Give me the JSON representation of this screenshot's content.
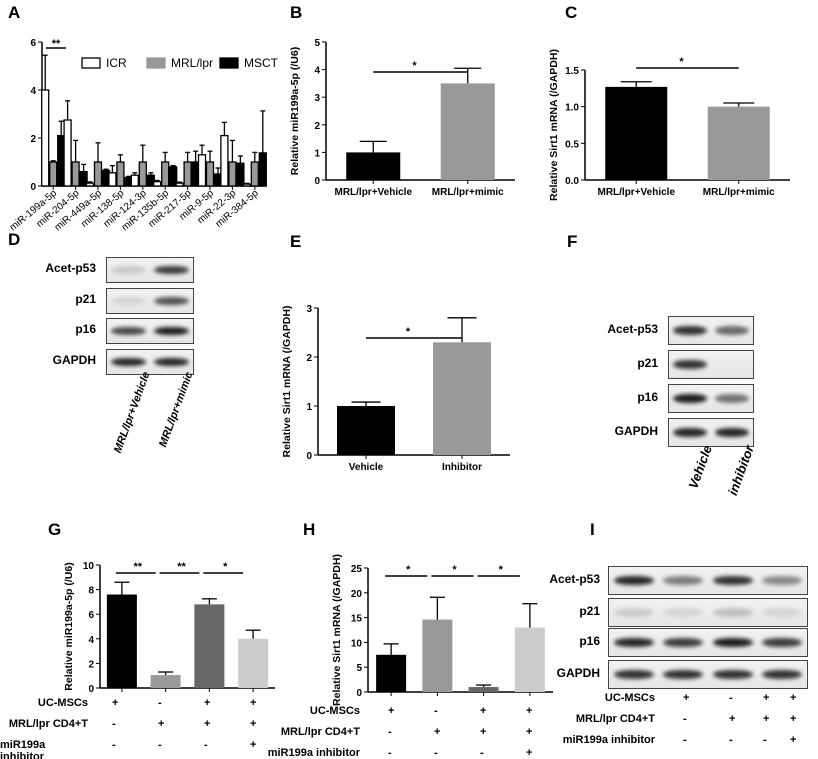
{
  "panels": {
    "A": "A",
    "B": "B",
    "C": "C",
    "D": "D",
    "E": "E",
    "F": "F",
    "G": "G",
    "H": "H",
    "I": "I"
  },
  "chart_data": [
    {
      "id": "A",
      "type": "bar",
      "title": "",
      "ylabel": "",
      "ylim": [
        0,
        6
      ],
      "yticks": [
        0,
        2,
        4,
        6
      ],
      "categories": [
        "miR-199a-5p",
        "miR-204-5p",
        "miR-449a-5p",
        "miR-138-5p",
        "miR-124-3p",
        "miR-135b-5p",
        "miR-217-5p",
        "miR-9-5p",
        "miR-22-3p",
        "miR-384-5p"
      ],
      "legend": {
        "placement": "top-right",
        "entries": [
          "ICR",
          "MRL/lpr",
          "MSCT"
        ]
      },
      "series": [
        {
          "name": "ICR",
          "color": "#ffffff",
          "values": [
            4.0,
            2.75,
            0.12,
            0.55,
            0.45,
            0.18,
            0.12,
            1.3,
            2.1,
            0.08
          ],
          "errors": [
            1.45,
            0.8,
            0.05,
            0.3,
            0.1,
            0.05,
            0.04,
            0.4,
            0.55,
            0.03
          ]
        },
        {
          "name": "MRL/lpr",
          "color": "#999999",
          "values": [
            1,
            1,
            1,
            1,
            1,
            1,
            1,
            1,
            1,
            1
          ],
          "errors": [
            0.05,
            0.9,
            0.8,
            0.3,
            0.7,
            0.4,
            0.4,
            0.45,
            0.9,
            0.4
          ]
        },
        {
          "name": "MSCT",
          "color": "#000000",
          "values": [
            2.1,
            0.6,
            0.65,
            0.35,
            0.45,
            0.8,
            1.0,
            0.5,
            0.95,
            1.38
          ],
          "errors": [
            0.6,
            0.3,
            0.05,
            0.05,
            0.1,
            0.05,
            0.45,
            0.25,
            0.3,
            1.75
          ]
        }
      ],
      "significance": [
        {
          "between": "miR-199a-5p ICR vs MSCT",
          "label": "**"
        }
      ]
    },
    {
      "id": "B",
      "type": "bar",
      "ylabel": "Relative miR199a-5p (/U6)",
      "ylim": [
        0,
        5
      ],
      "yticks": [
        0,
        1,
        2,
        3,
        4,
        5
      ],
      "categories": [
        "MRL/lpr+Vehicle",
        "MRL/lpr+mimic"
      ],
      "values": [
        1.0,
        3.5
      ],
      "errors": [
        0.4,
        0.55
      ],
      "colors": [
        "#000000",
        "#999999"
      ],
      "significance": [
        {
          "from": 0,
          "to": 1,
          "label": "*"
        }
      ]
    },
    {
      "id": "C",
      "type": "bar",
      "ylabel": "Relative Sirt1 mRNA (/GAPDH)",
      "ylim": [
        0,
        1.5
      ],
      "yticks": [
        0,
        0.5,
        1.0,
        1.5
      ],
      "ytick_labels": [
        "0.0",
        "0.5",
        "1.0",
        "1.5"
      ],
      "categories": [
        "MRL/lpr+Vehicle",
        "MRL/lpr+mimic"
      ],
      "values": [
        1.27,
        1.0
      ],
      "errors": [
        0.07,
        0.05
      ],
      "colors": [
        "#000000",
        "#999999"
      ],
      "significance": [
        {
          "from": 0,
          "to": 1,
          "label": "*"
        }
      ]
    },
    {
      "id": "E",
      "type": "bar",
      "ylabel": "Relative Sirt1 mRNA (/GAPDH)",
      "ylim": [
        0,
        3
      ],
      "yticks": [
        0,
        1,
        2,
        3
      ],
      "categories": [
        "Vehicle",
        "Inhibitor"
      ],
      "values": [
        1.0,
        2.3
      ],
      "errors": [
        0.08,
        0.5
      ],
      "colors": [
        "#000000",
        "#999999"
      ],
      "significance": [
        {
          "from": 0,
          "to": 1,
          "label": "*"
        }
      ]
    },
    {
      "id": "G",
      "type": "bar",
      "ylabel": "Relative miR199a-5p (/U6)",
      "ylim": [
        0,
        10
      ],
      "yticks": [
        0,
        2,
        4,
        6,
        8,
        10
      ],
      "categories": [
        "1",
        "2",
        "3",
        "4"
      ],
      "values": [
        7.6,
        1.05,
        6.8,
        4.0
      ],
      "errors": [
        1.0,
        0.25,
        0.45,
        0.7
      ],
      "colors": [
        "#000000",
        "#999999",
        "#666666",
        "#cccccc"
      ],
      "significance": [
        {
          "from": 0,
          "to": 1,
          "label": "**"
        },
        {
          "from": 1,
          "to": 2,
          "label": "**"
        },
        {
          "from": 2,
          "to": 3,
          "label": "*"
        }
      ]
    },
    {
      "id": "H",
      "type": "bar",
      "ylabel": "Relative Sirt1 mRNA (/GAPDH)",
      "ylim": [
        0,
        25
      ],
      "yticks": [
        0,
        5,
        10,
        15,
        20,
        25
      ],
      "categories": [
        "1",
        "2",
        "3",
        "4"
      ],
      "values": [
        7.5,
        14.6,
        1.0,
        13.0
      ],
      "errors": [
        2.2,
        4.5,
        0.4,
        4.8
      ],
      "colors": [
        "#000000",
        "#999999",
        "#666666",
        "#cccccc"
      ],
      "significance": [
        {
          "from": 0,
          "to": 1,
          "label": "*"
        },
        {
          "from": 1,
          "to": 2,
          "label": "*"
        },
        {
          "from": 2,
          "to": 3,
          "label": "*"
        }
      ]
    }
  ],
  "conditions": {
    "rows": [
      {
        "label": "UC-MSCs",
        "values": [
          "+",
          "-",
          "+",
          "+"
        ]
      },
      {
        "label": "MRL/lpr CD4+T",
        "values": [
          "-",
          "+",
          "+",
          "+"
        ]
      },
      {
        "label": "miR199a inhibitor",
        "values": [
          "-",
          "-",
          "-",
          "+"
        ]
      }
    ]
  },
  "blots": {
    "D": {
      "rows": [
        "Acet-p53",
        "p21",
        "p16",
        "GAPDH"
      ],
      "lanes": [
        "MRL/lpr+Vehicle",
        "MRL/lpr+mimic"
      ],
      "intensity": [
        [
          0.15,
          0.8
        ],
        [
          0.1,
          0.7
        ],
        [
          0.75,
          0.95
        ],
        [
          0.9,
          0.9
        ]
      ]
    },
    "F": {
      "rows": [
        "Acet-p53",
        "p21",
        "p16",
        "GAPDH"
      ],
      "lanes": [
        "Vehicle",
        "inhibitor"
      ],
      "intensity": [
        [
          0.85,
          0.6
        ],
        [
          0.85,
          0.0
        ],
        [
          0.95,
          0.55
        ],
        [
          0.9,
          0.9
        ]
      ]
    },
    "I": {
      "rows": [
        "Acet-p53",
        "p21",
        "p16",
        "GAPDH"
      ],
      "intensity": [
        [
          0.9,
          0.5,
          0.85,
          0.45
        ],
        [
          0.15,
          0.1,
          0.2,
          0.1
        ],
        [
          0.9,
          0.8,
          0.95,
          0.8
        ],
        [
          0.85,
          0.85,
          0.85,
          0.85
        ]
      ]
    }
  }
}
